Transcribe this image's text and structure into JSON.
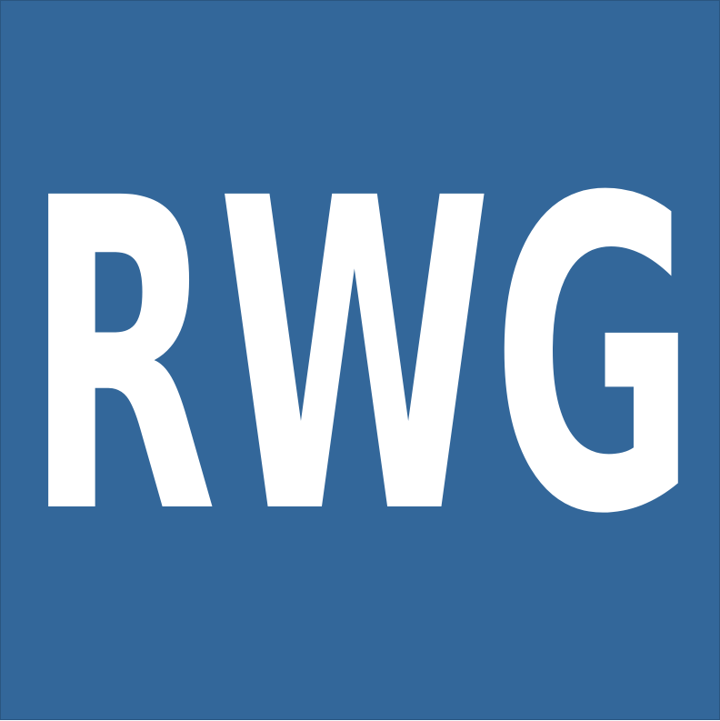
{
  "logo": {
    "text": "RWG",
    "background_color": "#33679a",
    "text_color": "#ffffff"
  }
}
